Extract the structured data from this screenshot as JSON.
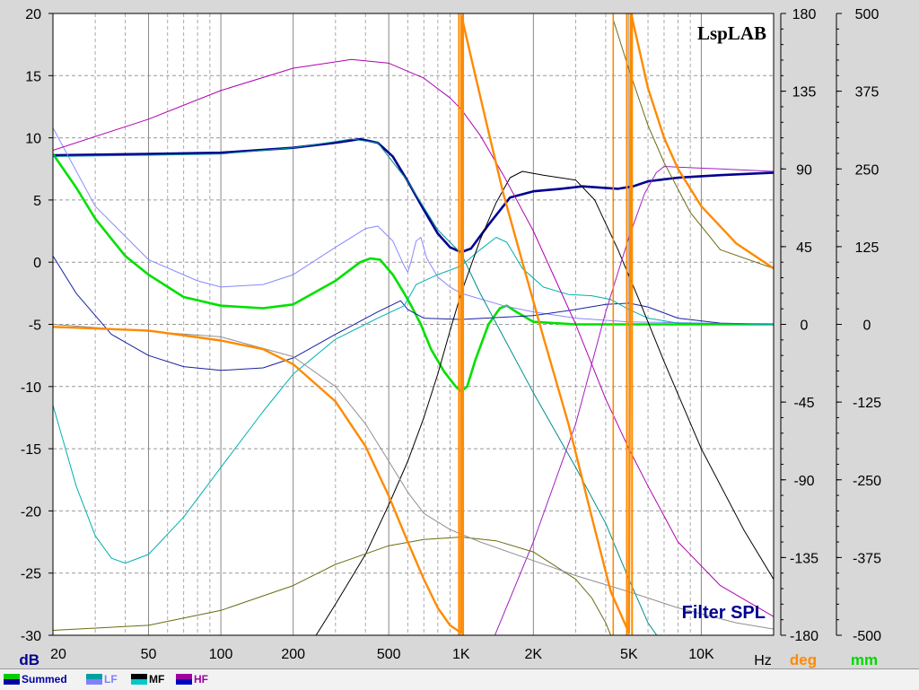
{
  "watermark": "LspLAB",
  "chart_title": "Filter SPL",
  "axis_units": {
    "left": "dB",
    "x": "Hz",
    "right1": "deg",
    "right2": "mm"
  },
  "colors": {
    "plot_bg": "#ffffff",
    "grid": "#9a9a9a",
    "deg_label": "#ff8a00",
    "mm_label": "#00d800",
    "title": "#000090"
  },
  "chart_data": {
    "type": "line",
    "x_scale": "log",
    "xlim": [
      20,
      20000
    ],
    "x_ticks": [
      {
        "v": 20,
        "label": "20"
      },
      {
        "v": 50,
        "label": "50"
      },
      {
        "v": 100,
        "label": "100"
      },
      {
        "v": 200,
        "label": "200"
      },
      {
        "v": 500,
        "label": "500"
      },
      {
        "v": 1000,
        "label": "1K"
      },
      {
        "v": 2000,
        "label": "2K"
      },
      {
        "v": 5000,
        "label": "5K"
      },
      {
        "v": 10000,
        "label": "10K"
      }
    ],
    "ylim": [
      -30,
      20
    ],
    "y_ticks": [
      "20",
      "15",
      "10",
      "5",
      "0",
      "-5",
      "-10",
      "-15",
      "-20",
      "-25",
      "-30"
    ],
    "y2_ticks": [
      "180",
      "135",
      "90",
      "45",
      "0",
      "-45",
      "-90",
      "-135",
      "-180"
    ],
    "y3_ticks": [
      "500",
      "375",
      "250",
      "125",
      "0",
      "-125",
      "-250",
      "-375",
      "-500"
    ],
    "legend": [
      {
        "label": "Summed",
        "colors": [
          "#00cc00",
          "#0000a0"
        ]
      },
      {
        "label": "LF",
        "colors": [
          "#00a0a0",
          "#8080ff"
        ]
      },
      {
        "label": "MF",
        "colors": [
          "#000000",
          "#00c8c8"
        ]
      },
      {
        "label": "HF",
        "colors": [
          "#a000a0",
          "#0000c0"
        ]
      }
    ],
    "series": [
      {
        "color": "#000090",
        "width": 2.6,
        "points": [
          [
            20,
            8.6
          ],
          [
            50,
            8.7
          ],
          [
            100,
            8.8
          ],
          [
            200,
            9.2
          ],
          [
            300,
            9.6
          ],
          [
            380,
            9.9
          ],
          [
            450,
            9.6
          ],
          [
            520,
            8.5
          ],
          [
            600,
            6.5
          ],
          [
            700,
            4.2
          ],
          [
            800,
            2.3
          ],
          [
            900,
            1.2
          ],
          [
            1000,
            0.8
          ],
          [
            1100,
            1.1
          ],
          [
            1300,
            3
          ],
          [
            1600,
            5.2
          ],
          [
            2000,
            5.7
          ],
          [
            2600,
            5.9
          ],
          [
            3200,
            6.1
          ],
          [
            4500,
            5.9
          ],
          [
            5200,
            6.1
          ],
          [
            6000,
            6.5
          ],
          [
            8000,
            6.8
          ],
          [
            12000,
            7
          ],
          [
            20000,
            7.2
          ]
        ]
      },
      {
        "color": "#00e000",
        "width": 2.6,
        "points": [
          [
            20,
            8.7
          ],
          [
            25,
            6
          ],
          [
            30,
            3.5
          ],
          [
            40,
            0.5
          ],
          [
            50,
            -1
          ],
          [
            70,
            -2.8
          ],
          [
            100,
            -3.5
          ],
          [
            150,
            -3.7
          ],
          [
            200,
            -3.4
          ],
          [
            300,
            -1.5
          ],
          [
            380,
            0
          ],
          [
            420,
            0.3
          ],
          [
            460,
            0.2
          ],
          [
            520,
            -1
          ],
          [
            580,
            -2.5
          ],
          [
            620,
            -3.5
          ],
          [
            680,
            -5
          ],
          [
            750,
            -7
          ],
          [
            850,
            -8.8
          ],
          [
            950,
            -10
          ],
          [
            1000,
            -10.4
          ],
          [
            1060,
            -10
          ],
          [
            1150,
            -7.8
          ],
          [
            1300,
            -5
          ],
          [
            1450,
            -3.7
          ],
          [
            1550,
            -3.5
          ],
          [
            1700,
            -4
          ],
          [
            2000,
            -4.8
          ],
          [
            3000,
            -5
          ],
          [
            5000,
            -5
          ],
          [
            20000,
            -5
          ]
        ]
      },
      {
        "color": "#8888ff",
        "width": 1,
        "points": [
          [
            20,
            10.8
          ],
          [
            30,
            4.5
          ],
          [
            50,
            0.2
          ],
          [
            80,
            -1.5
          ],
          [
            100,
            -2
          ],
          [
            150,
            -1.8
          ],
          [
            200,
            -1
          ],
          [
            300,
            1.2
          ],
          [
            400,
            2.7
          ],
          [
            450,
            2.9
          ],
          [
            520,
            1.7
          ],
          [
            580,
            -0.3
          ],
          [
            600,
            -0.8
          ],
          [
            620,
            0.1
          ],
          [
            650,
            1.7
          ],
          [
            680,
            2
          ],
          [
            720,
            0.3
          ],
          [
            800,
            -1.2
          ],
          [
            900,
            -2
          ],
          [
            1000,
            -2.5
          ],
          [
            1500,
            -3.5
          ],
          [
            2000,
            -4
          ],
          [
            3000,
            -4.5
          ],
          [
            5000,
            -4.8
          ],
          [
            20000,
            -5
          ]
        ]
      },
      {
        "color": "#1820a0",
        "width": 1,
        "points": [
          [
            20,
            0.5
          ],
          [
            25,
            -2.5
          ],
          [
            35,
            -5.8
          ],
          [
            50,
            -7.5
          ],
          [
            70,
            -8.4
          ],
          [
            100,
            -8.7
          ],
          [
            150,
            -8.5
          ],
          [
            200,
            -7.7
          ],
          [
            300,
            -5.8
          ],
          [
            450,
            -4
          ],
          [
            560,
            -3.1
          ],
          [
            600,
            -3.8
          ],
          [
            700,
            -4.5
          ],
          [
            1000,
            -4.6
          ],
          [
            2000,
            -4.3
          ],
          [
            3000,
            -3.8
          ],
          [
            4000,
            -3.4
          ],
          [
            5000,
            -3.3
          ],
          [
            6000,
            -3.6
          ],
          [
            8000,
            -4.5
          ],
          [
            12000,
            -4.9
          ],
          [
            20000,
            -5
          ]
        ]
      },
      {
        "color": "#00b0b0",
        "width": 1,
        "points": [
          [
            20,
            -11.5
          ],
          [
            25,
            -18
          ],
          [
            30,
            -22
          ],
          [
            35,
            -23.8
          ],
          [
            40,
            -24.2
          ],
          [
            50,
            -23.5
          ],
          [
            70,
            -20.5
          ],
          [
            100,
            -16.5
          ],
          [
            150,
            -12
          ],
          [
            200,
            -9
          ],
          [
            300,
            -6.2
          ],
          [
            450,
            -4.5
          ],
          [
            580,
            -3.5
          ],
          [
            650,
            -1.8
          ],
          [
            800,
            -1
          ],
          [
            1000,
            -0.3
          ],
          [
            1200,
            1
          ],
          [
            1400,
            2
          ],
          [
            1550,
            1.6
          ],
          [
            1800,
            -0.5
          ],
          [
            2200,
            -2
          ],
          [
            2800,
            -2.6
          ],
          [
            3500,
            -2.7
          ],
          [
            4200,
            -3
          ],
          [
            5000,
            -3.8
          ],
          [
            6000,
            -4.5
          ],
          [
            8000,
            -4.9
          ],
          [
            20000,
            -5
          ]
        ]
      },
      {
        "color": "#008c8c",
        "width": 1,
        "points": [
          [
            20,
            8.5
          ],
          [
            50,
            8.6
          ],
          [
            100,
            8.7
          ],
          [
            200,
            9.2
          ],
          [
            350,
            9.9
          ],
          [
            450,
            9.6
          ],
          [
            600,
            6.5
          ],
          [
            800,
            2.6
          ],
          [
            1000,
            0.7
          ],
          [
            1200,
            -2.5
          ],
          [
            1500,
            -6
          ],
          [
            2000,
            -10.5
          ],
          [
            3000,
            -16.5
          ],
          [
            4000,
            -21
          ],
          [
            5000,
            -25.5
          ],
          [
            6000,
            -29
          ],
          [
            6800,
            -30.5
          ]
        ]
      },
      {
        "color": "#000000",
        "width": 1,
        "points": [
          [
            240,
            -30.5
          ],
          [
            300,
            -27.5
          ],
          [
            400,
            -23.5
          ],
          [
            500,
            -19.5
          ],
          [
            600,
            -16
          ],
          [
            700,
            -12.5
          ],
          [
            800,
            -9
          ],
          [
            900,
            -5.5
          ],
          [
            1000,
            -2.5
          ],
          [
            1200,
            1.8
          ],
          [
            1400,
            4.8
          ],
          [
            1600,
            6.8
          ],
          [
            1800,
            7.3
          ],
          [
            2200,
            7
          ],
          [
            3000,
            6.6
          ],
          [
            3600,
            5
          ],
          [
            4500,
            1
          ],
          [
            5500,
            -3
          ],
          [
            7000,
            -8
          ],
          [
            10000,
            -15
          ],
          [
            15000,
            -21.5
          ],
          [
            20000,
            -25.5
          ]
        ]
      },
      {
        "color": "#b000b0",
        "width": 1,
        "points": [
          [
            20,
            9
          ],
          [
            50,
            11.5
          ],
          [
            100,
            13.8
          ],
          [
            200,
            15.6
          ],
          [
            350,
            16.3
          ],
          [
            500,
            16
          ],
          [
            700,
            14.8
          ],
          [
            900,
            13.2
          ],
          [
            1000,
            12.3
          ],
          [
            1200,
            10.2
          ],
          [
            1500,
            7
          ],
          [
            2000,
            2.5
          ],
          [
            3000,
            -5
          ],
          [
            4000,
            -11
          ],
          [
            5000,
            -15
          ],
          [
            6000,
            -18
          ],
          [
            8000,
            -22.5
          ],
          [
            12000,
            -26
          ],
          [
            20000,
            -28.5
          ]
        ]
      },
      {
        "color": "#a020c0",
        "width": 1,
        "points": [
          [
            1350,
            -30.5
          ],
          [
            2000,
            -22.5
          ],
          [
            3000,
            -13
          ],
          [
            4000,
            -4
          ],
          [
            5000,
            2
          ],
          [
            5800,
            5.5
          ],
          [
            6500,
            7.2
          ],
          [
            7000,
            7.7
          ],
          [
            9000,
            7.6
          ],
          [
            12000,
            7.5
          ],
          [
            20000,
            7.3
          ]
        ]
      },
      {
        "color": "#6b6b10",
        "width": 1,
        "points": [
          [
            20,
            -29.6
          ],
          [
            50,
            -29.2
          ],
          [
            100,
            -28
          ],
          [
            200,
            -26
          ],
          [
            300,
            -24.3
          ],
          [
            500,
            -22.8
          ],
          [
            700,
            -22.3
          ],
          [
            1000,
            -22.1
          ],
          [
            1400,
            -22.4
          ],
          [
            2000,
            -23.3
          ],
          [
            3000,
            -25.5
          ],
          [
            3500,
            -27
          ],
          [
            4000,
            -29
          ],
          [
            4300,
            -30.5
          ]
        ]
      },
      {
        "color": "#909090",
        "width": 1,
        "points": [
          [
            20,
            -5
          ],
          [
            100,
            -6
          ],
          [
            200,
            -7.6
          ],
          [
            300,
            -10
          ],
          [
            400,
            -13
          ],
          [
            500,
            -16
          ],
          [
            600,
            -18.5
          ],
          [
            700,
            -20.2
          ],
          [
            900,
            -21.5
          ],
          [
            1200,
            -22.5
          ],
          [
            2000,
            -24
          ],
          [
            3000,
            -25.2
          ],
          [
            5000,
            -26.5
          ],
          [
            8000,
            -27.8
          ],
          [
            14000,
            -29
          ],
          [
            20000,
            -29.5
          ]
        ]
      },
      {
        "color": "#6b6b10",
        "width": 1,
        "points": [
          [
            4300,
            19.5
          ],
          [
            5000,
            15.5
          ],
          [
            6000,
            11
          ],
          [
            7000,
            8
          ],
          [
            9000,
            4
          ],
          [
            12000,
            1
          ],
          [
            20000,
            -0.5
          ]
        ]
      },
      {
        "color": "#ff8a00",
        "width": 2.4,
        "points": [
          [
            20,
            -5.2
          ],
          [
            50,
            -5.5
          ],
          [
            100,
            -6.3
          ],
          [
            150,
            -7
          ],
          [
            200,
            -8.2
          ],
          [
            300,
            -11.2
          ],
          [
            400,
            -14.8
          ],
          [
            500,
            -18.8
          ],
          [
            600,
            -22.5
          ],
          [
            700,
            -25.5
          ],
          [
            800,
            -27.8
          ],
          [
            900,
            -29.2
          ],
          [
            1000,
            -29.8
          ],
          [
            1005,
            19.8
          ],
          [
            1100,
            16.5
          ],
          [
            1300,
            10.5
          ],
          [
            1500,
            5.5
          ],
          [
            1800,
            0
          ],
          [
            2200,
            -6
          ],
          [
            2800,
            -13
          ],
          [
            3500,
            -20.5
          ],
          [
            4200,
            -26.5
          ],
          [
            5000,
            -29.8
          ],
          [
            5100,
            20
          ],
          [
            6000,
            14
          ],
          [
            7000,
            10
          ],
          [
            8000,
            7.5
          ],
          [
            10000,
            4.5
          ],
          [
            14000,
            1.5
          ],
          [
            20000,
            -0.5
          ]
        ]
      }
    ],
    "verticals": [
      {
        "color": "#ff8a00",
        "x": 980,
        "width": 2
      },
      {
        "color": "#ff8a00",
        "x": 1020,
        "width": 2
      },
      {
        "color": "#ff8a00",
        "x": 4300,
        "width": 1.6
      },
      {
        "color": "#ff8a00",
        "x": 4900,
        "width": 2
      },
      {
        "color": "#ff8a00",
        "x": 5150,
        "width": 2
      }
    ]
  }
}
